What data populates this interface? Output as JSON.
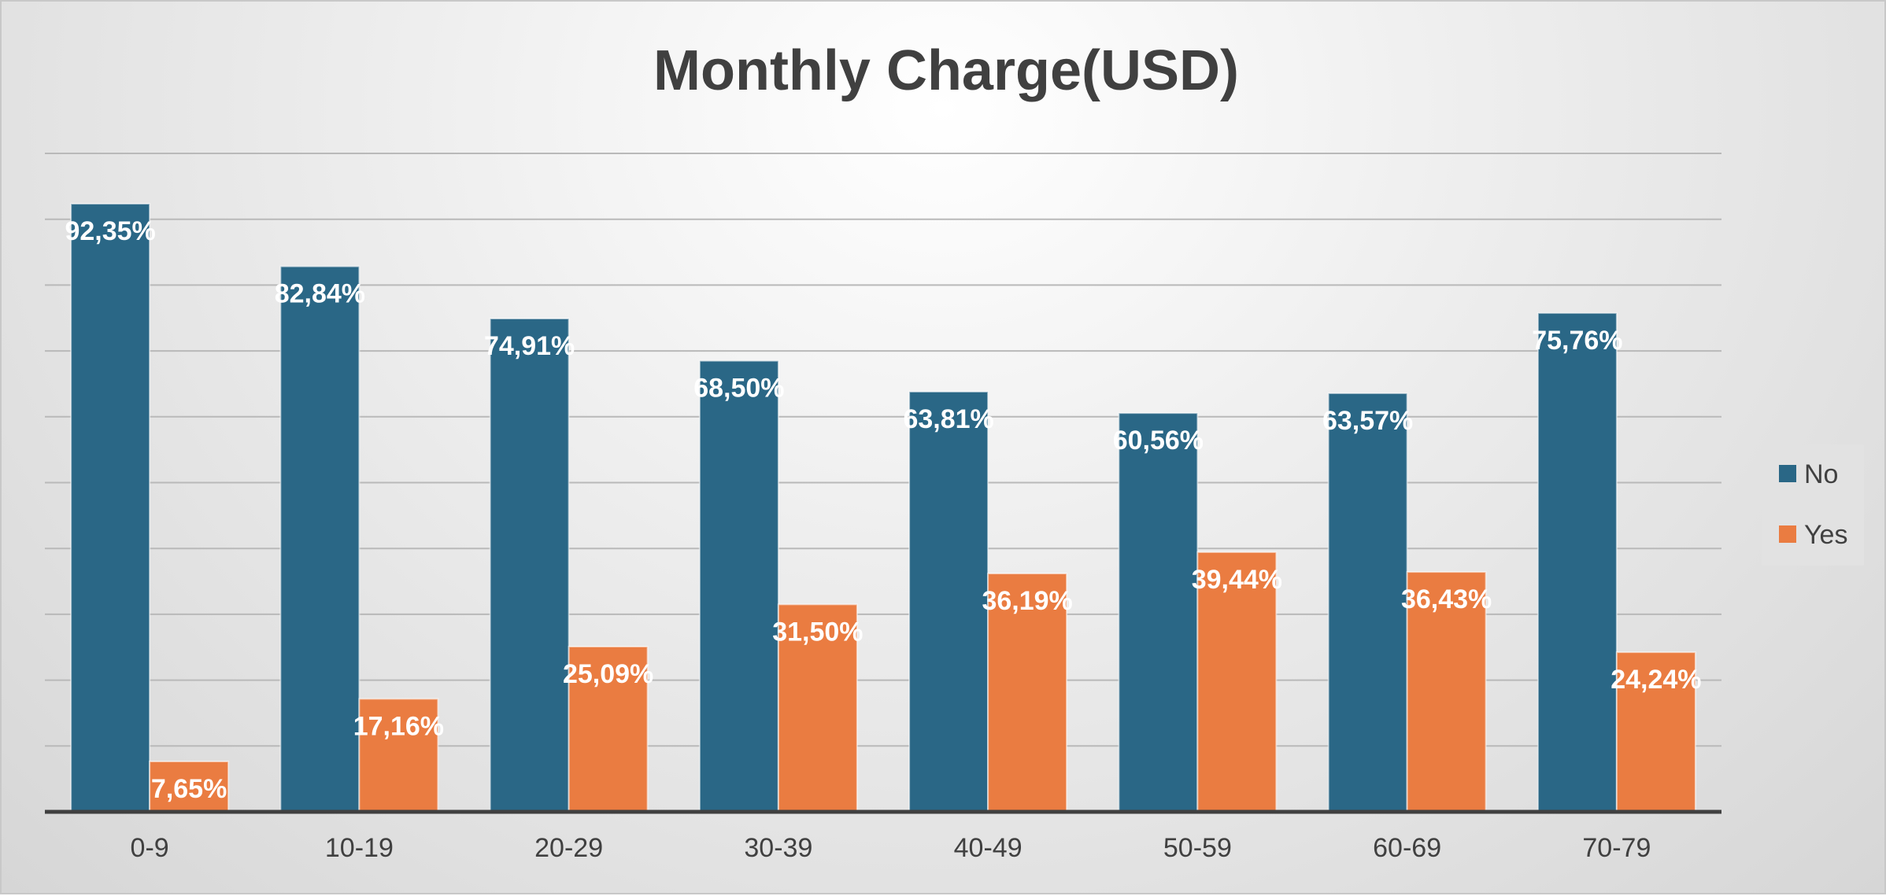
{
  "chart_data": {
    "type": "bar",
    "title": "Monthly Charge(USD)",
    "categories": [
      "0-9",
      "10-19",
      "20-29",
      "30-39",
      "40-49",
      "50-59",
      "60-69",
      "70-79"
    ],
    "series": [
      {
        "name": "No",
        "color": "#2a6786",
        "values": [
          92.35,
          82.84,
          74.91,
          68.5,
          63.81,
          60.56,
          63.57,
          75.76
        ],
        "labels": [
          "92,35%",
          "82,84%",
          "74,91%",
          "68,50%",
          "63,81%",
          "60,56%",
          "63,57%",
          "75,76%"
        ]
      },
      {
        "name": "Yes",
        "color": "#ea7c41",
        "values": [
          7.65,
          17.16,
          25.09,
          31.5,
          36.19,
          39.44,
          36.43,
          24.24
        ],
        "labels": [
          "7,65%",
          "17,16%",
          "25,09%",
          "31,50%",
          "36,19%",
          "39,44%",
          "36,43%",
          "24,24%"
        ]
      }
    ],
    "ylim": [
      0,
      100
    ],
    "grid": true,
    "yaxis_labels_shown": false,
    "legend_position": "right"
  }
}
